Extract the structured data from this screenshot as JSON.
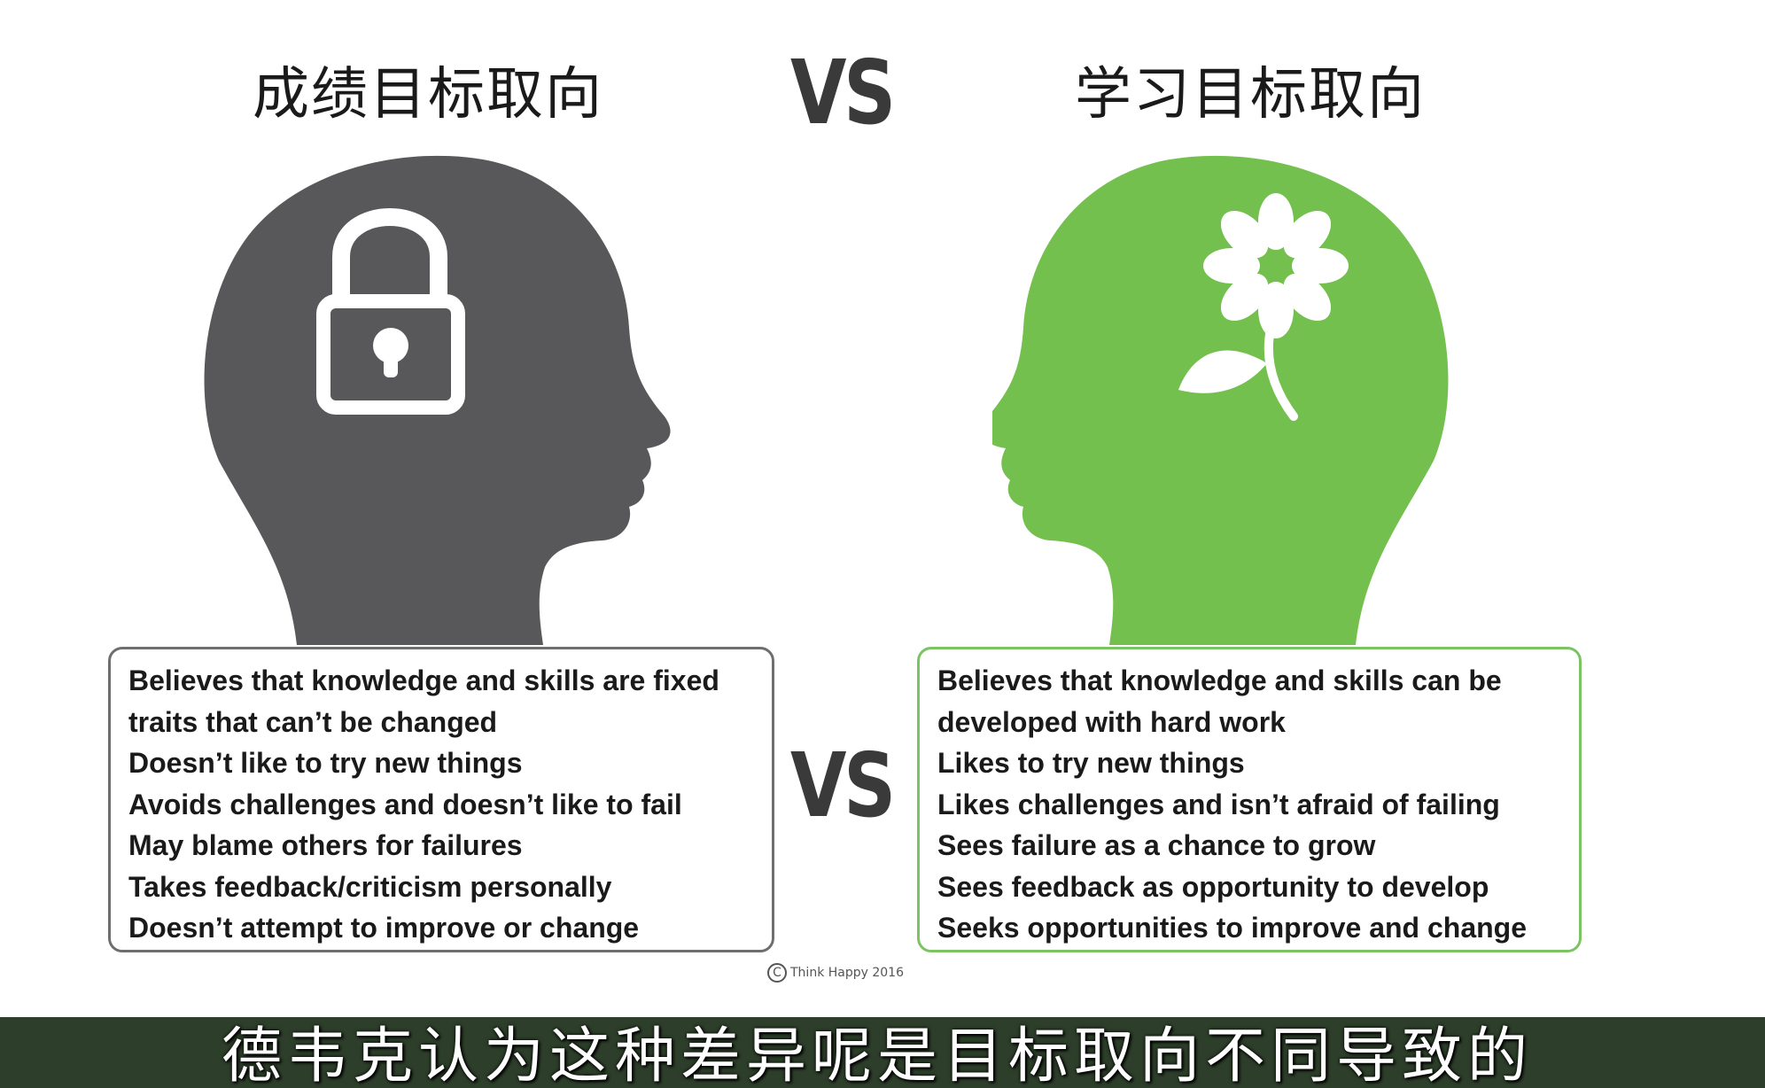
{
  "headings": {
    "left": "成绩目标取向",
    "right": "学习目标取向"
  },
  "vs": {
    "top": "VS",
    "middle": "VS"
  },
  "colors": {
    "left_head": "#58585a",
    "right_head": "#74c04f",
    "left_border": "#6e6e6e",
    "right_border": "#7cc463",
    "subtitle_bar": "#2d3f2a"
  },
  "icons": {
    "left_head": "padlock-icon",
    "right_head": "flower-icon"
  },
  "left_traits": [
    "Believes that knowledge and skills are fixed",
    "traits that can’t be changed",
    "Doesn’t like to try new things",
    "Avoids challenges and doesn’t like to fail",
    "May blame others for failures",
    "Takes feedback/criticism personally",
    "Doesn’t attempt to improve or change"
  ],
  "right_traits": [
    "Believes that knowledge and skills can be",
    "developed with hard work",
    "Likes to try new things",
    "Likes challenges and isn’t afraid of failing",
    "Sees failure as a chance to grow",
    "Sees feedback as opportunity to develop",
    "Seeks opportunities to improve and change"
  ],
  "copyright": {
    "symbol": "C",
    "text": "Think Happy 2016"
  },
  "subtitle": "德韦克认为这种差异呢是目标取向不同导致的"
}
